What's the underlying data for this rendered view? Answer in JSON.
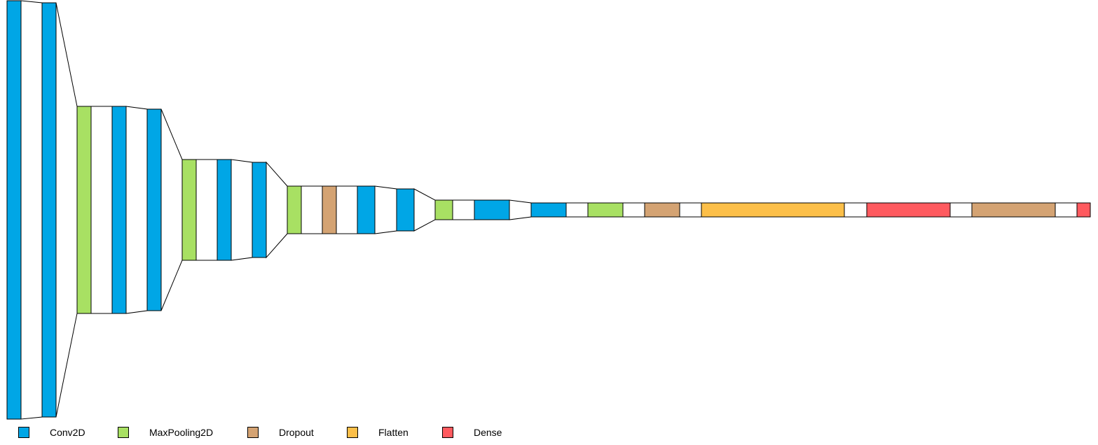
{
  "diagram": {
    "type": "layered-neural-network-architecture",
    "layer_types": {
      "Conv2D": {
        "color": "#00a6e6"
      },
      "MaxPooling2D": {
        "color": "#a8e063"
      },
      "Dropout": {
        "color": "#d4a373"
      },
      "Flatten": {
        "color": "#fcbf49"
      },
      "Dense": {
        "color": "#ff5a5f"
      }
    },
    "layers": [
      {
        "type": "Conv2D"
      },
      {
        "type": "Conv2D"
      },
      {
        "type": "MaxPooling2D"
      },
      {
        "type": "Conv2D"
      },
      {
        "type": "Conv2D"
      },
      {
        "type": "MaxPooling2D"
      },
      {
        "type": "Conv2D"
      },
      {
        "type": "Conv2D"
      },
      {
        "type": "MaxPooling2D"
      },
      {
        "type": "Dropout"
      },
      {
        "type": "Conv2D"
      },
      {
        "type": "Conv2D"
      },
      {
        "type": "MaxPooling2D"
      },
      {
        "type": "Conv2D"
      },
      {
        "type": "Conv2D"
      },
      {
        "type": "MaxPooling2D"
      },
      {
        "type": "Dropout"
      },
      {
        "type": "Flatten"
      },
      {
        "type": "Dense"
      },
      {
        "type": "Dropout"
      },
      {
        "type": "Dense"
      }
    ]
  },
  "legend": {
    "items": [
      {
        "label": "Conv2D",
        "color": "#00a6e6"
      },
      {
        "label": "MaxPooling2D",
        "color": "#a8e063"
      },
      {
        "label": "Dropout",
        "color": "#d4a373"
      },
      {
        "label": "Flatten",
        "color": "#fcbf49"
      },
      {
        "label": "Dense",
        "color": "#ff5a5f"
      }
    ]
  }
}
